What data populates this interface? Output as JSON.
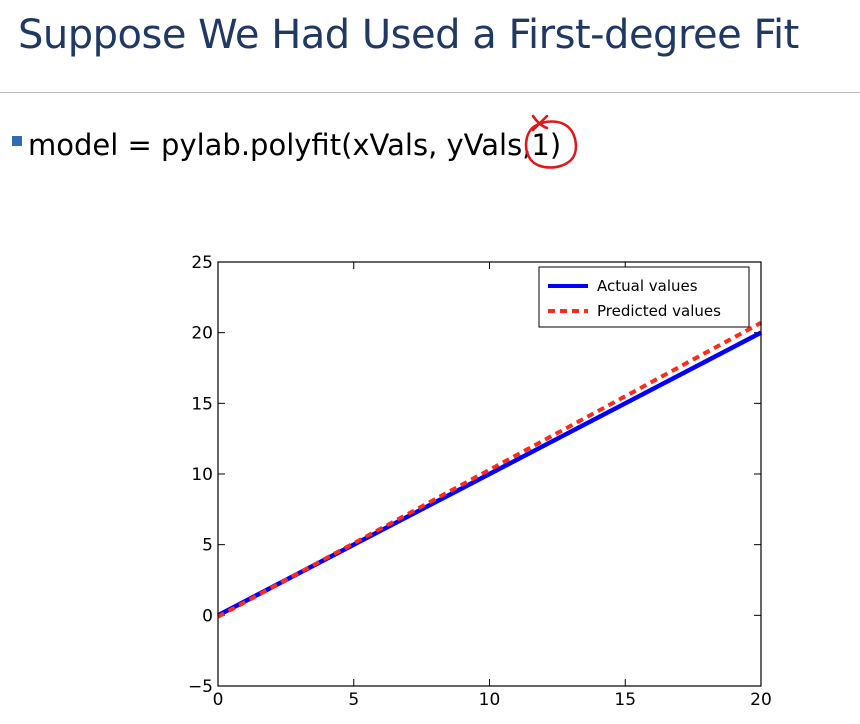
{
  "slide": {
    "title": "Suppose We Had Used a First-degree Fit",
    "bullet_text": "model = pylab.polyfit(xVals, yVals, ",
    "bullet_emphasis": "1)",
    "accent_color": "#1f3864",
    "bullet_color": "#2e6db4",
    "annotation_color": "#e01818"
  },
  "chart_data": {
    "type": "line",
    "xlim": [
      0,
      20
    ],
    "ylim": [
      -5,
      25
    ],
    "xticks": [
      0,
      5,
      10,
      15,
      20
    ],
    "yticks": [
      -5,
      0,
      5,
      10,
      15,
      20,
      25
    ],
    "grid": false,
    "legend_position": "top-right",
    "series": [
      {
        "name": "Actual values",
        "color": "#0000ff",
        "style": "solid",
        "x": [
          0,
          20
        ],
        "y": [
          0,
          20
        ]
      },
      {
        "name": "Predicted values",
        "color": "#ff2a1a",
        "style": "dashed",
        "x": [
          0,
          20
        ],
        "y": [
          -0.1,
          20.7
        ]
      }
    ]
  }
}
